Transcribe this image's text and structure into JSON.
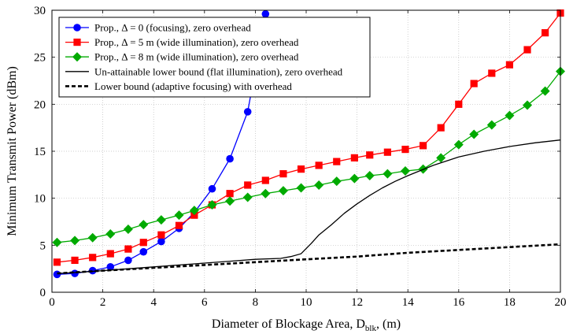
{
  "chart_data": {
    "type": "line",
    "title": "",
    "xlabel_main": "Diameter of Blockage Area, D",
    "xlabel_sub": "blk",
    "xlabel_tail": ", (m)",
    "ylabel": "Minimum Transmit Power (dBm)",
    "xlim": [
      0,
      20
    ],
    "ylim": [
      0,
      30
    ],
    "xticks": [
      0,
      2,
      4,
      6,
      8,
      10,
      12,
      14,
      16,
      18,
      20
    ],
    "yticks": [
      0,
      5,
      10,
      15,
      20,
      25,
      30
    ],
    "grid": true,
    "legend_position": "top-left",
    "series": [
      {
        "name": "Prop., Δ = 0 (focusing), zero overhead",
        "color": "#0000ff",
        "marker": "circle",
        "line_style": "solid",
        "x": [
          0.2,
          0.9,
          1.6,
          2.3,
          3.0,
          3.6,
          4.3,
          5.0,
          5.6,
          6.3,
          7.0,
          7.7,
          8.4
        ],
        "y": [
          1.9,
          2.0,
          2.3,
          2.7,
          3.4,
          4.3,
          5.4,
          6.8,
          8.5,
          11.0,
          14.2,
          19.2,
          29.6
        ]
      },
      {
        "name": "Prop., Δ = 5 m (wide illumination), zero overhead",
        "color": "#ff0000",
        "marker": "square",
        "line_style": "solid",
        "x": [
          0.2,
          0.9,
          1.6,
          2.3,
          3.0,
          3.6,
          4.3,
          5.0,
          5.6,
          6.3,
          7.0,
          7.7,
          8.4,
          9.1,
          9.8,
          10.5,
          11.2,
          11.9,
          12.5,
          13.2,
          13.9,
          14.6,
          15.3,
          16.0,
          16.6,
          17.3,
          18.0,
          18.7,
          19.4,
          20.0
        ],
        "y": [
          3.2,
          3.4,
          3.7,
          4.1,
          4.6,
          5.3,
          6.1,
          7.1,
          8.2,
          9.3,
          10.5,
          11.4,
          11.9,
          12.6,
          13.1,
          13.5,
          13.9,
          14.3,
          14.6,
          14.9,
          15.2,
          15.6,
          17.5,
          20.0,
          22.2,
          23.3,
          24.2,
          25.8,
          27.6,
          29.7
        ]
      },
      {
        "name": "Prop., Δ = 8 m (wide illumination), zero overhead",
        "color": "#00aa00",
        "marker": "diamond",
        "line_style": "solid",
        "x": [
          0.2,
          0.9,
          1.6,
          2.3,
          3.0,
          3.6,
          4.3,
          5.0,
          5.6,
          6.3,
          7.0,
          7.7,
          8.4,
          9.1,
          9.8,
          10.5,
          11.2,
          11.9,
          12.5,
          13.2,
          13.9,
          14.6,
          15.3,
          16.0,
          16.6,
          17.3,
          18.0,
          18.7,
          19.4,
          20.0
        ],
        "y": [
          5.3,
          5.5,
          5.8,
          6.2,
          6.7,
          7.2,
          7.7,
          8.2,
          8.7,
          9.3,
          9.7,
          10.1,
          10.5,
          10.8,
          11.1,
          11.4,
          11.8,
          12.1,
          12.4,
          12.6,
          12.9,
          13.1,
          14.3,
          15.7,
          16.8,
          17.8,
          18.8,
          19.9,
          21.4,
          23.5
        ]
      },
      {
        "name": "Un-attainable lower bound (flat illumination), zero overhead",
        "color": "#000000",
        "marker": "none",
        "line_style": "solid",
        "x": [
          0.2,
          1,
          2,
          3,
          4,
          5,
          6,
          7,
          8,
          9,
          9.4,
          9.8,
          10.2,
          10.5,
          11,
          11.5,
          12,
          12.5,
          13,
          13.5,
          14,
          15,
          16,
          17,
          18,
          19,
          20
        ],
        "y": [
          2.0,
          2.1,
          2.3,
          2.5,
          2.7,
          2.9,
          3.1,
          3.3,
          3.5,
          3.6,
          3.8,
          4.1,
          5.2,
          6.1,
          7.2,
          8.4,
          9.4,
          10.3,
          11.1,
          11.8,
          12.4,
          13.5,
          14.4,
          15.0,
          15.5,
          15.9,
          16.2
        ]
      },
      {
        "name": "Lower bound (adaptive focusing) with overhead",
        "color": "#000000",
        "marker": "none",
        "line_style": "dashed",
        "x": [
          0.2,
          2,
          4,
          6,
          8,
          10,
          12,
          14,
          16,
          18,
          20
        ],
        "y": [
          2.0,
          2.3,
          2.6,
          2.9,
          3.2,
          3.5,
          3.8,
          4.2,
          4.5,
          4.8,
          5.1
        ]
      }
    ]
  }
}
